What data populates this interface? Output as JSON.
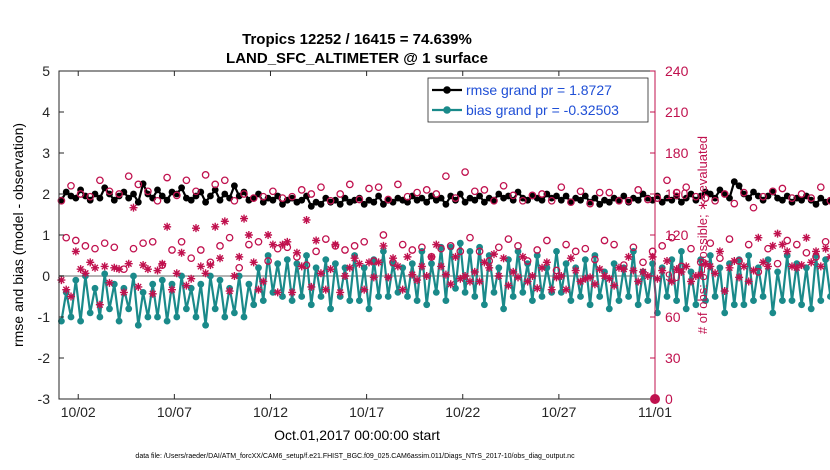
{
  "chart_data": {
    "type": "line",
    "title": "Tropics 12252 / 16415 = 74.639%",
    "subtitle": "LAND_SFC_ALTIMETER @ 1 surface",
    "xlabel": "Oct.01,2017 00:00:00 start",
    "ylabel": "rmse and bias (model - observation)",
    "ylabel_right": "# of obs: o=possible; ∗=evaluated",
    "xlim": [
      0,
      31
    ],
    "ylim": [
      -3,
      5
    ],
    "ylim_right": [
      0,
      240
    ],
    "x_ticks": [
      {
        "pos": 1,
        "label": "10/02"
      },
      {
        "pos": 6,
        "label": "10/07"
      },
      {
        "pos": 11,
        "label": "10/12"
      },
      {
        "pos": 16,
        "label": "10/17"
      },
      {
        "pos": 21,
        "label": "10/22"
      },
      {
        "pos": 26,
        "label": "10/27"
      },
      {
        "pos": 31,
        "label": "11/01"
      }
    ],
    "y_ticks_left": [
      "-3",
      "-2",
      "-1",
      "0",
      "1",
      "2",
      "3",
      "4",
      "5"
    ],
    "y_ticks_right": [
      "0",
      "30",
      "60",
      "90",
      "120",
      "150",
      "180",
      "210",
      "240"
    ],
    "legend": [
      {
        "label": "rmse grand pr = 1.8727",
        "color": "#000000",
        "marker": "filled-circle"
      },
      {
        "label": "bias grand pr = -0.32503",
        "color": "#1a8a8a",
        "marker": "filled-circle"
      }
    ],
    "colors": {
      "rmse": "#000000",
      "bias": "#1a8a8a",
      "obs": "#c0114e",
      "zero_line": "#b3b3b3"
    },
    "time_step_days": 0.25,
    "series": [
      {
        "name": "rmse",
        "axis": "left",
        "values": [
          1.85,
          2.05,
          1.95,
          1.9,
          2.1,
          1.95,
          1.85,
          2.0,
          1.9,
          2.15,
          2.0,
          1.85,
          1.95,
          2.05,
          1.9,
          2.0,
          1.8,
          2.25,
          2.0,
          1.9,
          2.1,
          1.95,
          1.85,
          2.05,
          2.0,
          2.15,
          1.9,
          1.85,
          1.95,
          2.05,
          1.8,
          1.95,
          2.1,
          1.85,
          2.0,
          1.9,
          2.2,
          1.95,
          2.05,
          1.85,
          1.9,
          2.0,
          1.8,
          1.9,
          1.85,
          1.95,
          1.75,
          1.85,
          1.9,
          1.8,
          1.85,
          1.95,
          1.7,
          1.8,
          1.75,
          1.9,
          1.8,
          1.85,
          1.75,
          1.9,
          1.8,
          1.85,
          1.9,
          1.75,
          1.85,
          1.8,
          1.95,
          1.75,
          1.85,
          1.8,
          1.9,
          1.85,
          1.8,
          1.95,
          1.85,
          1.9,
          1.8,
          1.95,
          1.85,
          1.9,
          1.75,
          1.95,
          1.85,
          2.0,
          1.8,
          1.9,
          1.85,
          1.95,
          1.8,
          1.9,
          1.85,
          2.0,
          1.9,
          1.95,
          1.85,
          2.05,
          1.9,
          1.85,
          1.95,
          1.9,
          1.85,
          2.0,
          1.9,
          1.95,
          1.85,
          1.95,
          1.8,
          1.9,
          1.85,
          1.95,
          1.8,
          1.9,
          1.75,
          1.85,
          1.8,
          1.9,
          1.85,
          1.95,
          1.8,
          1.9,
          1.85,
          2.0,
          1.9,
          1.85,
          1.95,
          1.8,
          1.9,
          1.85,
          1.95,
          1.8,
          1.9,
          2.0,
          1.85,
          1.95,
          2.05,
          2.0,
          1.9,
          2.1,
          2.0,
          1.9,
          2.3,
          2.2,
          2.0,
          1.9,
          2.05,
          1.95,
          1.85,
          1.95,
          2.05,
          1.9,
          1.85,
          1.95,
          1.8,
          1.9,
          1.85,
          1.95,
          1.85,
          1.75,
          1.9,
          1.8,
          1.85,
          1.75,
          1.7,
          1.8,
          1.7,
          1.75,
          1.85,
          1.95,
          2.0,
          1.9,
          1.85
        ]
      },
      {
        "name": "bias",
        "axis": "left",
        "values": [
          -1.1,
          -0.4,
          -1.0,
          -0.1,
          -1.1,
          0.0,
          -0.9,
          -0.3,
          -1.0,
          0.05,
          -0.8,
          -0.2,
          -1.1,
          -0.3,
          -0.8,
          0.0,
          -1.2,
          -0.4,
          -1.0,
          -0.2,
          -1.0,
          -0.1,
          -1.1,
          -0.2,
          -1.0,
          0.0,
          -0.8,
          -0.3,
          -1.0,
          -0.2,
          -1.2,
          0.0,
          -0.8,
          -0.1,
          -1.0,
          -0.3,
          -0.9,
          0.0,
          -1.0,
          -0.2,
          -0.7,
          0.2,
          -0.6,
          0.5,
          -0.4,
          0.3,
          -0.5,
          0.4,
          -0.6,
          0.3,
          -0.5,
          0.5,
          -0.7,
          0.2,
          -0.5,
          0.4,
          -0.8,
          0.3,
          -0.5,
          0.2,
          -0.6,
          0.5,
          -0.6,
          0.2,
          -0.8,
          0.4,
          -0.5,
          0.6,
          -0.5,
          0.3,
          -0.4,
          0.2,
          -0.5,
          0.3,
          -0.6,
          0.6,
          -0.7,
          0.3,
          -0.4,
          0.7,
          -0.6,
          0.7,
          -0.3,
          0.8,
          -0.4,
          0.6,
          -0.5,
          0.7,
          -0.7,
          0.5,
          -0.4,
          0.2,
          -0.8,
          0.4,
          -0.5,
          0.6,
          -0.4,
          0.3,
          -0.6,
          0.5,
          -0.5,
          0.2,
          -0.4,
          0.6,
          -0.4,
          0.3,
          -0.6,
          0.2,
          -0.5,
          0.4,
          -0.7,
          0.5,
          -0.5,
          0.1,
          -0.8,
          0.3,
          -0.6,
          0.2,
          -0.5,
          0.6,
          -0.7,
          0.1,
          -0.6,
          0.3,
          -0.9,
          0.2,
          -0.5,
          0.4,
          -0.6,
          0.6,
          -0.8,
          0.1,
          -0.7,
          0.4,
          -0.6,
          0.5,
          -0.5,
          0.2,
          -0.9,
          0.3,
          -0.7,
          0.4,
          -0.7,
          0.5,
          -0.6,
          0.2,
          -0.5,
          0.4,
          -0.9,
          0.1,
          -0.6,
          0.5,
          -0.6,
          0.3,
          -0.7,
          0.2,
          -0.8,
          0.5,
          -0.6,
          0.4,
          -0.5,
          0.3,
          -0.5,
          0.6,
          -0.6,
          0.4,
          -0.8,
          0.2,
          -0.4,
          0.3,
          -0.6,
          0.1
        ]
      },
      {
        "name": "obs_possible",
        "axis": "right",
        "marker": "open-circle",
        "values": [
          145,
          118,
          156,
          116,
          150,
          112,
          148,
          110,
          160,
          114,
          152,
          111,
          150,
          95,
          163,
          110,
          157,
          114,
          152,
          115,
          145,
          98,
          162,
          109,
          149,
          115,
          160,
          103,
          152,
          109,
          164,
          100,
          157,
          112,
          160,
          118,
          145,
          96,
          150,
          113,
          147,
          115,
          148,
          101,
          152,
          110,
          147,
          111,
          148,
          104,
          153,
          98,
          150,
          108,
          155,
          117,
          145,
          112,
          150,
          109,
          157,
          112,
          146,
          115,
          154,
          101,
          155,
          120,
          146,
          100,
          157,
          113,
          148,
          109,
          151,
          111,
          153,
          104,
          150,
          110,
          163,
          112,
          147,
          108,
          166,
          118,
          152,
          108,
          153,
          101,
          145,
          111,
          156,
          117,
          149,
          112,
          145,
          101,
          149,
          109,
          150,
          116,
          145,
          94,
          155,
          113,
          144,
          108,
          152,
          110,
          143,
          102,
          151,
          116,
          151,
          113,
          145,
          98,
          145,
          111,
          153,
          100,
          146,
          108,
          147,
          112,
          160,
          118,
          151,
          97,
          155,
          110,
          148,
          100,
          147,
          114,
          145,
          103,
          150,
          117,
          143,
          101,
          151,
          113,
          140,
          93,
          148,
          110,
          152,
          99,
          154,
          116,
          147,
          113,
          150,
          107,
          147,
          104,
          155,
          115,
          145,
          100,
          148,
          110,
          140,
          97,
          150,
          112,
          145,
          145
        ]
      },
      {
        "name": "obs_evaluated",
        "axis": "right",
        "marker": "asterisk",
        "values": [
          87,
          80,
          75,
          108,
          95,
          92,
          100,
          96,
          69,
          97,
          85,
          96,
          95,
          78,
          99,
          140,
          82,
          98,
          95,
          77,
          94,
          99,
          126,
          80,
          92,
          107,
          83,
          88,
          125,
          97,
          92,
          98,
          126,
          103,
          130,
          79,
          90,
          104,
          132,
          120,
          100,
          80,
          86,
          120,
          113,
          78,
          113,
          115,
          78,
          107,
          97,
          131,
          82,
          116,
          92,
          80,
          95,
          113,
          78,
          90,
          96,
          103,
          99,
          80,
          100,
          89,
          100,
          112,
          89,
          103,
          97,
          80,
          104,
          91,
          87,
          97,
          90,
          104,
          113,
          97,
          91,
          84,
          104,
          88,
          90,
          86,
          93,
          86,
          100,
          96,
          106,
          90,
          103,
          83,
          93,
          89,
          104,
          86,
          90,
          81,
          96,
          100,
          80,
          89,
          90,
          80,
          103,
          94,
          86,
          88,
          89,
          84,
          95,
          90,
          88,
          83,
          96,
          95,
          104,
          94,
          86,
          93,
          90,
          104,
          88,
          94,
          101,
          86,
          95,
          93,
          97,
          86,
          90,
          91,
          99,
          97,
          92,
          108,
          79,
          96,
          101,
          89,
          97,
          86,
          94,
          118,
          100,
          97,
          112,
          121,
          113,
          108,
          97,
          96,
          98,
          118,
          100,
          108,
          97,
          110,
          104,
          97,
          83,
          108,
          95,
          97,
          118,
          98,
          110,
          98
        ]
      }
    ]
  },
  "footer": "data file: /Users/raeder/DAI/ATM_forcXX/CAM6_setup/f.e21.FHIST_BGC.f09_025.CAM6assim.011/Diags_NTrS_2017-10/obs_diag_output.nc"
}
